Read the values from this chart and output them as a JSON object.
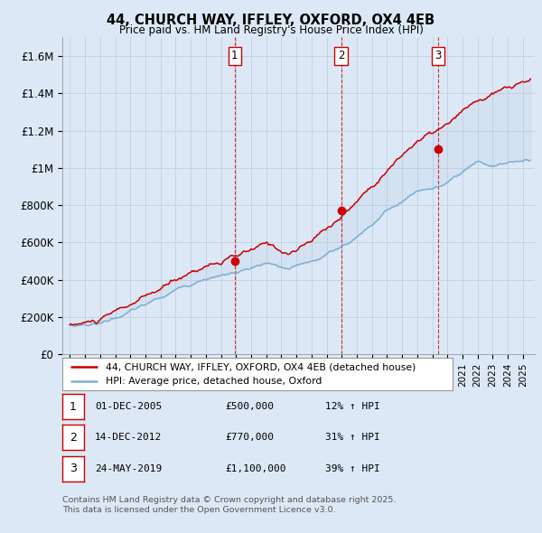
{
  "title": "44, CHURCH WAY, IFFLEY, OXFORD, OX4 4EB",
  "subtitle": "Price paid vs. HM Land Registry's House Price Index (HPI)",
  "ylabel_ticks": [
    "£0",
    "£200K",
    "£400K",
    "£600K",
    "£800K",
    "£1M",
    "£1.2M",
    "£1.4M",
    "£1.6M"
  ],
  "ytick_values": [
    0,
    200000,
    400000,
    600000,
    800000,
    1000000,
    1200000,
    1400000,
    1600000
  ],
  "ylim": [
    0,
    1700000
  ],
  "xlim_start": 1994.5,
  "xlim_end": 2025.8,
  "property_color": "#cc0000",
  "hpi_color": "#7bafd4",
  "purchase_dates": [
    2005.917,
    2012.958,
    2019.389
  ],
  "purchase_prices": [
    500000,
    770000,
    1100000
  ],
  "purchase_labels": [
    "1",
    "2",
    "3"
  ],
  "vline_color": "#cc0000",
  "legend_property": "44, CHURCH WAY, IFFLEY, OXFORD, OX4 4EB (detached house)",
  "legend_hpi": "HPI: Average price, detached house, Oxford",
  "table_data": [
    [
      "1",
      "01-DEC-2005",
      "£500,000",
      "12% ↑ HPI"
    ],
    [
      "2",
      "14-DEC-2012",
      "£770,000",
      "31% ↑ HPI"
    ],
    [
      "3",
      "24-MAY-2019",
      "£1,100,000",
      "39% ↑ HPI"
    ]
  ],
  "footnote": "Contains HM Land Registry data © Crown copyright and database right 2025.\nThis data is licensed under the Open Government Licence v3.0.",
  "background_color": "#dce8f5",
  "plot_bg_color": "#dce8f5",
  "grid_color": "#bbccdd"
}
